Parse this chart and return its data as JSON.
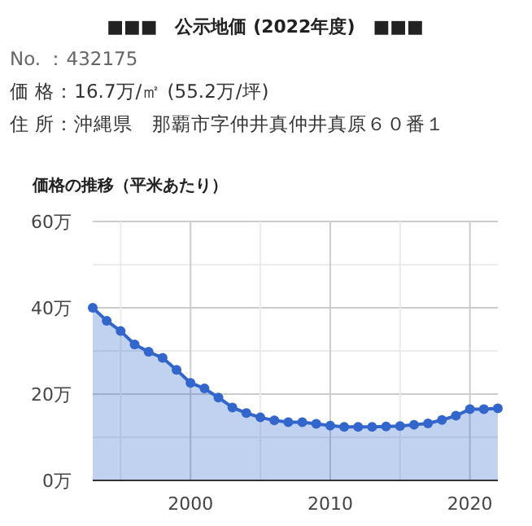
{
  "chart_data": {
    "type": "area",
    "title": "■■■　公示地価 (2022年度)　■■■",
    "subtitle": "価格の推移（平米あたり）",
    "annotations": [
      "No. ：432175",
      "価 格：16.7万/㎡ (55.2万/坪)",
      "住 所：沖縄県　那覇市字仲井真仲井真原６０番１"
    ],
    "x": [
      1993,
      1994,
      1995,
      1996,
      1997,
      1998,
      1999,
      2000,
      2001,
      2002,
      2003,
      2004,
      2005,
      2006,
      2007,
      2008,
      2009,
      2010,
      2011,
      2012,
      2013,
      2014,
      2015,
      2016,
      2017,
      2018,
      2019,
      2020,
      2021,
      2022
    ],
    "series": [
      {
        "color": "#3366cc",
        "values": [
          40.0,
          37.0,
          34.6,
          31.5,
          29.8,
          28.4,
          25.6,
          22.6,
          21.3,
          19.2,
          16.9,
          15.6,
          14.6,
          13.9,
          13.5,
          13.5,
          13.1,
          12.7,
          12.4,
          12.4,
          12.4,
          12.5,
          12.6,
          12.9,
          13.2,
          14.0,
          15.0,
          16.5,
          16.5,
          16.7
        ]
      }
    ],
    "xlim": [
      1993,
      2022
    ],
    "ylim": [
      0,
      60
    ],
    "xticks": [
      {
        "value": 1995,
        "label": null
      },
      2000,
      {
        "value": 2005,
        "label": null
      },
      2010,
      {
        "value": 2015,
        "label": null
      },
      2020
    ],
    "yticks": [
      {
        "value": 0,
        "label": "0万"
      },
      {
        "value": 10,
        "label": null
      },
      {
        "value": 20,
        "label": "20万"
      },
      {
        "value": 30,
        "label": null
      },
      {
        "value": 40,
        "label": "40万"
      },
      {
        "value": 50,
        "label": null
      },
      {
        "value": 60,
        "label": "60万"
      }
    ],
    "grid": true,
    "marker": "circle"
  }
}
